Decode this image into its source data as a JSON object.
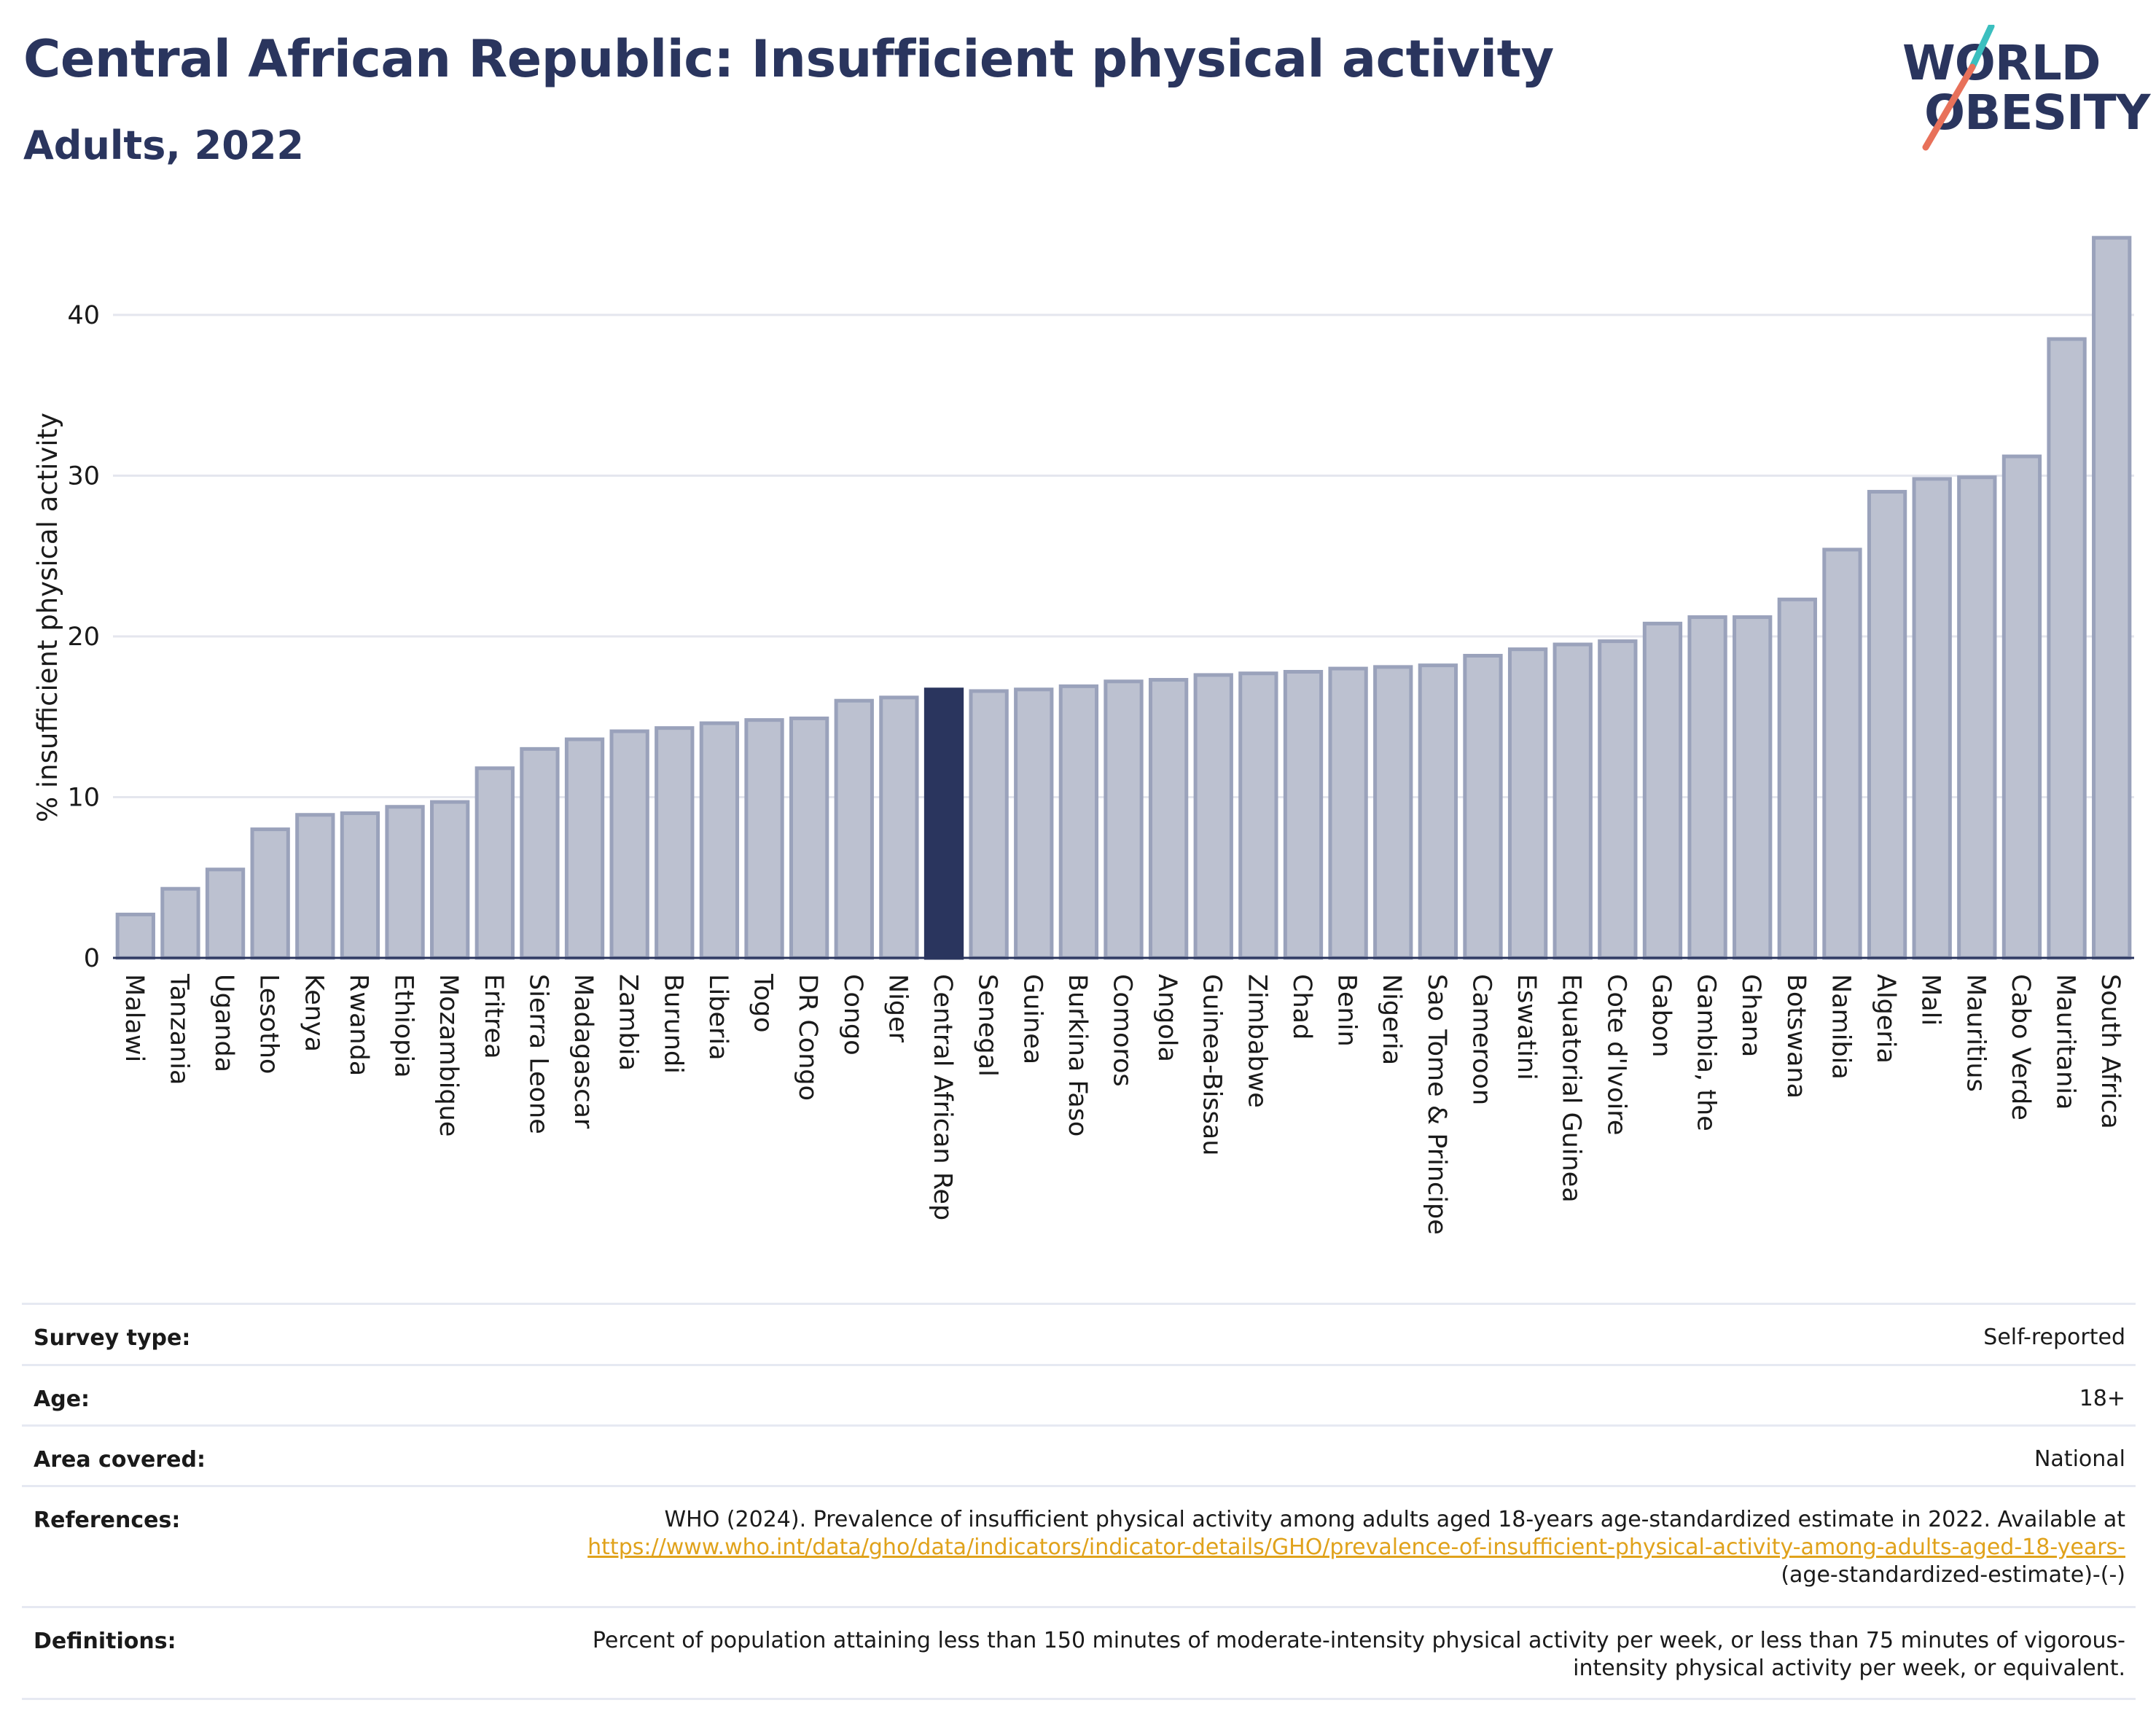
{
  "header": {
    "title": "Central African Republic: Insufficient physical activity",
    "subtitle": "Adults, 2022"
  },
  "logo": {
    "line1": "WORLD",
    "line2": "OBESITY",
    "colors": [
      "#2a355e",
      "#3bbfbf",
      "#e8715a"
    ]
  },
  "chart_data": {
    "type": "bar",
    "ylabel": "% insufficient physical activity",
    "xlabel": "",
    "ylim": [
      0,
      46
    ],
    "yticks": [
      0,
      10,
      20,
      30,
      40
    ],
    "grid": true,
    "highlight": "Central African Rep",
    "colors": {
      "bar": "#bcc1d0",
      "bar_edge": "#9aa2bb",
      "highlight": "#2a355e"
    },
    "categories": [
      "Malawi",
      "Tanzania",
      "Uganda",
      "Lesotho",
      "Kenya",
      "Rwanda",
      "Ethiopia",
      "Mozambique",
      "Eritrea",
      "Sierra Leone",
      "Madagascar",
      "Zambia",
      "Burundi",
      "Liberia",
      "Togo",
      "DR Congo",
      "Congo",
      "Niger",
      "Central African Rep",
      "Senegal",
      "Guinea",
      "Burkina Faso",
      "Comoros",
      "Angola",
      "Guinea-Bissau",
      "Zimbabwe",
      "Chad",
      "Benin",
      "Nigeria",
      "Sao Tome & Principe",
      "Cameroon",
      "Eswatini",
      "Equatorial Guinea",
      "Cote d'Ivoire",
      "Gabon",
      "Gambia, the",
      "Ghana",
      "Botswana",
      "Namibia",
      "Algeria",
      "Mali",
      "Mauritius",
      "Cabo Verde",
      "Mauritania",
      "South Africa"
    ],
    "values": [
      2.7,
      4.3,
      5.5,
      8.0,
      8.9,
      9.0,
      9.4,
      9.7,
      11.8,
      13.0,
      13.6,
      14.1,
      14.3,
      14.6,
      14.8,
      14.9,
      16.0,
      16.2,
      16.7,
      16.6,
      16.7,
      16.9,
      17.2,
      17.3,
      17.6,
      17.7,
      17.8,
      18.0,
      18.1,
      18.2,
      18.8,
      19.2,
      19.5,
      19.7,
      20.8,
      21.2,
      21.2,
      22.3,
      25.4,
      29.0,
      29.8,
      29.9,
      31.2,
      38.5,
      44.8
    ]
  },
  "info": [
    {
      "key": "Survey type:",
      "value": "Self-reported"
    },
    {
      "key": "Age:",
      "value": "18+"
    },
    {
      "key": "Area covered:",
      "value": "National"
    },
    {
      "key": "References:",
      "value_pre": "WHO (2024). Prevalence of insufficient physical activity among adults aged 18-years age-standardized estimate in 2022. Available at",
      "link": "https://www.who.int/data/gho/data/indicators/indicator-details/GHO/prevalence-of-insufficient-physical-activity-among-adults-aged-18-years-",
      "value_post": "(age-standardized-estimate)-(-)"
    },
    {
      "key": "Definitions:",
      "value": "Percent of population attaining less than 150 minutes of moderate-intensity physical activity per week, or less than 75 minutes of vigorous-intensity physical activity per week, or equivalent."
    }
  ]
}
